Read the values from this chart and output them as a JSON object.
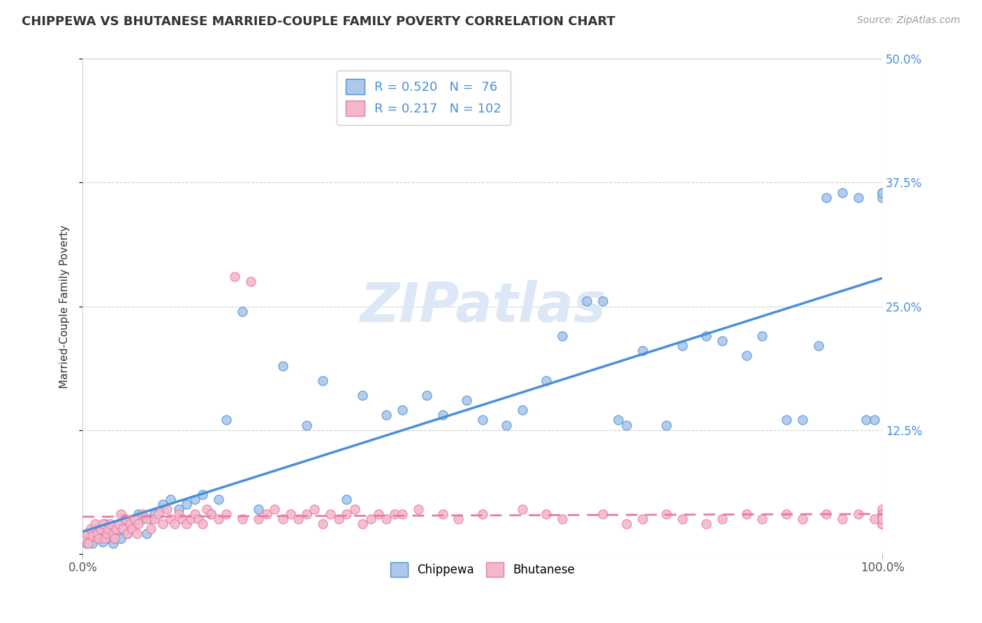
{
  "title": "CHIPPEWA VS BHUTANESE MARRIED-COUPLE FAMILY POVERTY CORRELATION CHART",
  "source": "Source: ZipAtlas.com",
  "ylabel_label": "Married-Couple Family Poverty",
  "legend_labels": [
    "Chippewa",
    "Bhutanese"
  ],
  "chippewa_color": "#adc8e8",
  "bhutanese_color": "#f5b8cb",
  "chippewa_line_color": "#4a90d9",
  "bhutanese_line_color": "#e87aa0",
  "chippewa_R": 0.52,
  "chippewa_N": 76,
  "bhutanese_R": 0.217,
  "bhutanese_N": 102,
  "xlim": [
    0,
    100
  ],
  "ylim": [
    0,
    50
  ],
  "background_color": "#ffffff",
  "grid_color": "#cccccc",
  "chippewa_x": [
    0.5,
    0.8,
    1.0,
    1.2,
    1.5,
    1.8,
    2.0,
    2.2,
    2.5,
    2.8,
    3.0,
    3.2,
    3.5,
    3.8,
    4.0,
    4.2,
    4.5,
    4.8,
    5.0,
    5.3,
    5.6,
    6.0,
    6.5,
    7.0,
    7.5,
    8.0,
    8.5,
    9.0,
    10.0,
    11.0,
    12.0,
    13.0,
    14.0,
    15.0,
    16.0,
    17.0,
    18.0,
    20.0,
    22.0,
    25.0,
    28.0,
    30.0,
    33.0,
    35.0,
    38.0,
    40.0,
    43.0,
    45.0,
    48.0,
    50.0,
    53.0,
    55.0,
    58.0,
    60.0,
    63.0,
    65.0,
    67.0,
    68.0,
    70.0,
    73.0,
    75.0,
    78.0,
    80.0,
    83.0,
    85.0,
    88.0,
    90.0,
    92.0,
    93.0,
    95.0,
    97.0,
    98.0,
    99.0,
    100.0,
    100.5,
    101.0
  ],
  "chippewa_y": [
    1.0,
    1.5,
    2.0,
    1.0,
    2.5,
    1.8,
    1.5,
    2.0,
    1.2,
    3.0,
    2.5,
    1.5,
    2.0,
    1.0,
    1.5,
    2.0,
    3.0,
    1.5,
    2.5,
    3.5,
    2.0,
    2.5,
    3.0,
    4.0,
    3.5,
    2.0,
    3.5,
    4.0,
    5.0,
    5.5,
    4.5,
    5.0,
    5.5,
    6.0,
    4.0,
    5.5,
    13.5,
    24.5,
    4.5,
    19.0,
    13.0,
    17.5,
    5.5,
    16.0,
    14.0,
    14.5,
    16.0,
    14.0,
    15.5,
    13.5,
    13.0,
    14.5,
    17.5,
    22.0,
    25.5,
    25.5,
    13.5,
    13.0,
    20.5,
    13.0,
    21.0,
    22.0,
    21.5,
    20.0,
    22.0,
    13.5,
    13.5,
    21.0,
    36.0,
    36.5,
    36.0,
    13.5,
    13.5,
    36.5,
    36.0,
    36.5
  ],
  "bhutanese_x": [
    0.3,
    0.5,
    0.7,
    1.0,
    1.2,
    1.5,
    1.8,
    2.0,
    2.2,
    2.5,
    2.8,
    3.0,
    3.2,
    3.5,
    3.8,
    4.0,
    4.2,
    4.5,
    4.8,
    5.0,
    5.3,
    5.6,
    5.9,
    6.2,
    6.5,
    6.8,
    7.0,
    7.5,
    8.0,
    8.5,
    9.0,
    9.5,
    10.0,
    10.5,
    11.0,
    11.5,
    12.0,
    12.5,
    13.0,
    13.5,
    14.0,
    14.5,
    15.0,
    15.5,
    16.0,
    17.0,
    18.0,
    19.0,
    20.0,
    21.0,
    22.0,
    23.0,
    24.0,
    25.0,
    26.0,
    27.0,
    28.0,
    29.0,
    30.0,
    31.0,
    32.0,
    33.0,
    34.0,
    35.0,
    36.0,
    37.0,
    38.0,
    39.0,
    40.0,
    42.0,
    45.0,
    47.0,
    50.0,
    55.0,
    58.0,
    60.0,
    65.0,
    68.0,
    70.0,
    73.0,
    75.0,
    78.0,
    80.0,
    83.0,
    85.0,
    88.0,
    90.0,
    93.0,
    95.0,
    97.0,
    99.0,
    100.0,
    102.0,
    103.0,
    104.0,
    105.0,
    106.0,
    108.0,
    110.0,
    112.0,
    115.0,
    118.0
  ],
  "bhutanese_y": [
    1.5,
    2.0,
    1.0,
    2.5,
    1.8,
    3.0,
    2.0,
    1.5,
    2.5,
    3.0,
    1.5,
    2.0,
    2.5,
    3.0,
    2.0,
    1.5,
    2.5,
    3.0,
    4.0,
    2.5,
    3.5,
    2.0,
    3.0,
    2.5,
    3.5,
    2.0,
    3.0,
    4.0,
    3.5,
    2.5,
    3.5,
    4.0,
    3.0,
    4.5,
    3.5,
    3.0,
    4.0,
    3.5,
    3.0,
    3.5,
    4.0,
    3.5,
    3.0,
    4.5,
    4.0,
    3.5,
    4.0,
    28.0,
    3.5,
    27.5,
    3.5,
    4.0,
    4.5,
    3.5,
    4.0,
    3.5,
    4.0,
    4.5,
    3.0,
    4.0,
    3.5,
    4.0,
    4.5,
    3.0,
    3.5,
    4.0,
    3.5,
    4.0,
    4.0,
    4.5,
    4.0,
    3.5,
    4.0,
    4.5,
    4.0,
    3.5,
    4.0,
    3.0,
    3.5,
    4.0,
    3.5,
    3.0,
    3.5,
    4.0,
    3.5,
    4.0,
    3.5,
    4.0,
    3.5,
    4.0,
    3.5,
    4.0,
    4.5,
    3.5,
    3.0,
    4.0,
    3.5,
    3.0,
    4.0,
    3.5,
    3.0,
    3.5
  ]
}
